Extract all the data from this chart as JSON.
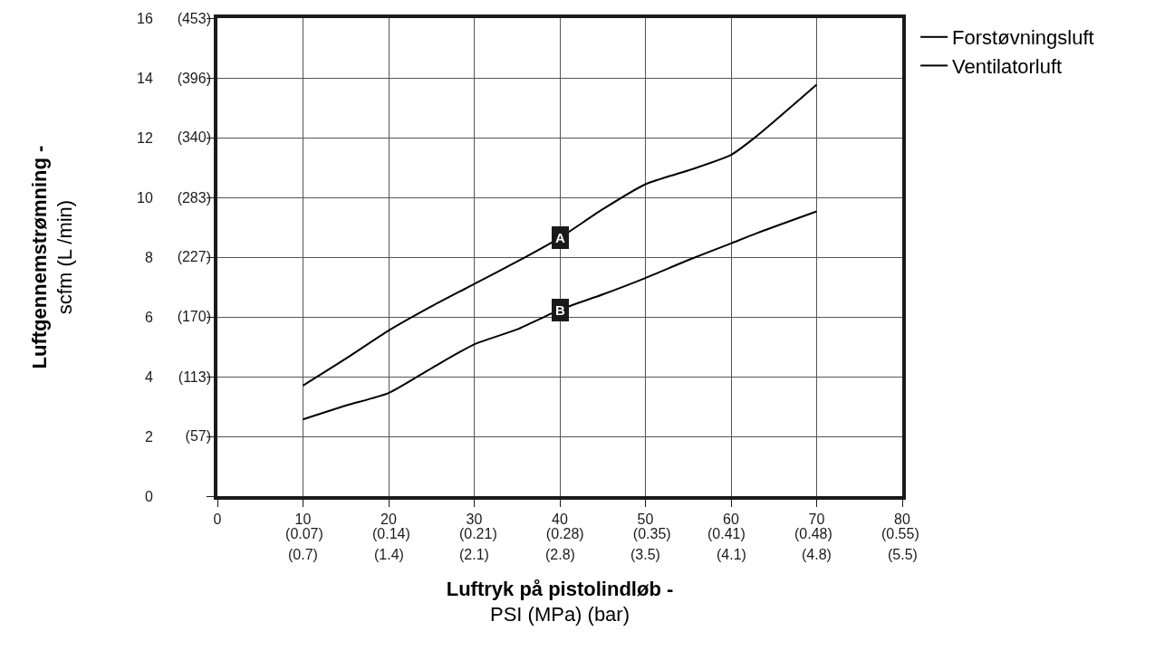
{
  "chart_data": {
    "type": "line",
    "xlabel": "Luftryk på pistolindløb -\nPSI (MPa) (bar)",
    "ylabel": "Luftgennemstrømning -\nscfm (L /min)",
    "x": [
      10,
      15,
      20,
      25,
      30,
      35,
      40,
      45,
      50,
      55,
      60,
      63,
      70
    ],
    "series": [
      {
        "name": "Forstøvningsluft",
        "color": "#000000",
        "values": [
          3.7,
          4.6,
          5.54,
          6.35,
          7.1,
          7.85,
          8.65,
          9.6,
          10.44,
          10.9,
          11.42,
          12.05,
          13.77
        ]
      },
      {
        "name": "Ventilatorluft",
        "color": "#000000",
        "values": [
          2.57,
          3.03,
          3.45,
          4.28,
          5.08,
          5.58,
          6.24,
          6.75,
          7.3,
          7.9,
          8.46,
          8.8,
          9.53
        ]
      }
    ],
    "annotations": [
      {
        "text": "A",
        "x": 40,
        "y": 8.65
      },
      {
        "text": "B",
        "x": 40,
        "y": 6.24
      },
      "(0.7)",
      "(1.4)",
      "(2.1)",
      "(2.8)",
      "(3.5)",
      "(4.1)",
      "(4.8)",
      "(5.5)"
    ],
    "xlim": [
      0,
      80
    ],
    "ylim": [
      0,
      16
    ],
    "xticks": [
      0,
      10,
      20,
      30,
      40,
      50,
      60,
      70,
      80
    ],
    "yticks": [
      0,
      2,
      4,
      6,
      8,
      10,
      12,
      14,
      16
    ],
    "x2lim": [
      0,
      0.5516
    ],
    "x2ticks": [
      {
        "value": 0.07,
        "label": "(0.07)"
      },
      {
        "value": 0.14,
        "label": "(0.14)"
      },
      {
        "value": 0.21,
        "label": "(0.21)"
      },
      {
        "value": 0.28,
        "label": "(0.28)"
      },
      {
        "value": 0.35,
        "label": "(0.35)"
      },
      {
        "value": 0.41,
        "label": "(0.41)"
      },
      {
        "value": 0.48,
        "label": "(0.48)"
      },
      {
        "value": 0.55,
        "label": "(0.55)"
      }
    ],
    "y2lim": [
      0,
      453
    ],
    "y2ticks": [
      {
        "value": 57,
        "label": "(57)"
      },
      {
        "value": 113,
        "label": "(113)"
      },
      {
        "value": 170,
        "label": "(170)"
      },
      {
        "value": 227,
        "label": "(227)"
      },
      {
        "value": 283,
        "label": "(283)"
      },
      {
        "value": 340,
        "label": "(340)"
      },
      {
        "value": 396,
        "label": "(396)"
      },
      {
        "value": 453,
        "label": "(453)"
      }
    ],
    "grid": true,
    "legend": "top right",
    "marker": "none",
    "line_style": "solid"
  }
}
